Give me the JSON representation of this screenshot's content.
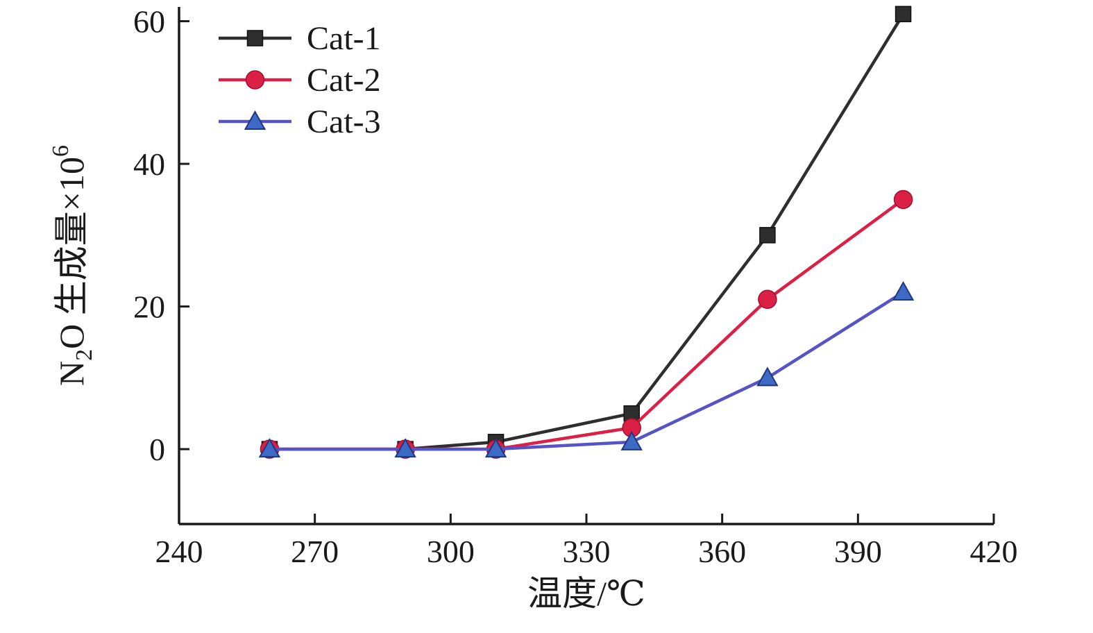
{
  "figure": {
    "background": "#ffffff"
  },
  "chart_data": {
    "type": "line",
    "title": "",
    "xlabel": "温度/℃",
    "ylabel": "N2O 生成量×10^6",
    "ylabel_parts": [
      {
        "t": "N",
        "style": "normal"
      },
      {
        "t": "2",
        "style": "sub"
      },
      {
        "t": "O 生成量×10",
        "style": "normal"
      },
      {
        "t": "6",
        "style": "sup"
      }
    ],
    "x": [
      260,
      290,
      310,
      340,
      370,
      400
    ],
    "series": [
      {
        "name": "Cat-1",
        "values": [
          0,
          0,
          1,
          5,
          30,
          61
        ],
        "color": "#2e2e2e",
        "marker": "square",
        "marker_color": "#2e2e2e",
        "marker_edge": "#111111"
      },
      {
        "name": "Cat-2",
        "values": [
          0,
          0,
          0,
          3,
          21,
          35
        ],
        "color": "#dc2045",
        "marker": "circle",
        "marker_color": "#dc2045",
        "marker_edge": "#9c1030"
      },
      {
        "name": "Cat-3",
        "values": [
          0,
          0,
          0,
          1,
          10,
          22
        ],
        "color": "#5553c5",
        "marker": "triangle",
        "marker_color": "#3d6ac5",
        "marker_edge": "#22367f"
      }
    ],
    "xlim": [
      240,
      420
    ],
    "ylim": [
      -10.5,
      62
    ],
    "xticks": [
      240,
      270,
      300,
      330,
      360,
      390,
      420
    ],
    "yticks": [
      0,
      20,
      40,
      60
    ],
    "grid": false,
    "legend_position": "top-left",
    "axis_color": "#1a1a1a"
  }
}
